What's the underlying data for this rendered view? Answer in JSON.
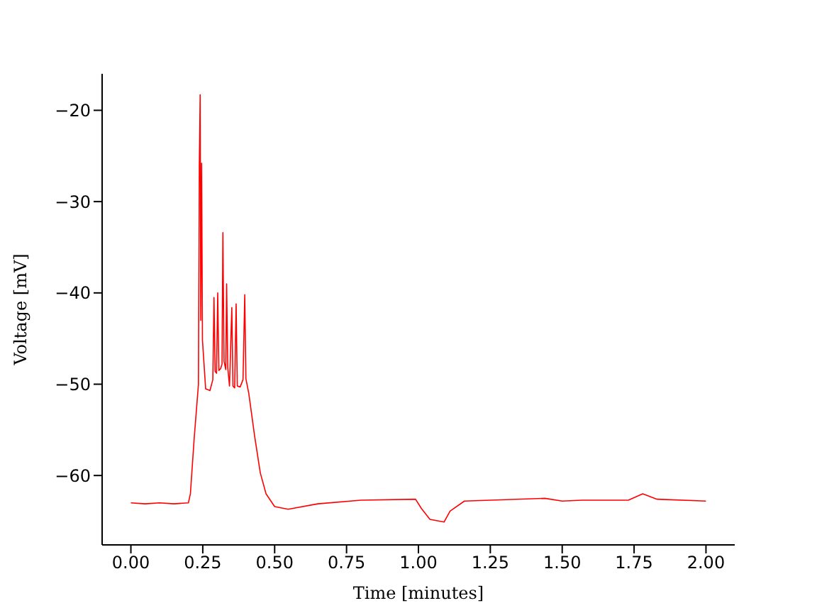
{
  "chart_data": {
    "type": "line",
    "xlabel": "Time [minutes]",
    "ylabel": "Voltage [mV]",
    "x": [
      0,
      0.05,
      0.1,
      0.15,
      0.2,
      0.207,
      0.22,
      0.235,
      0.238,
      0.241,
      0.243,
      0.246,
      0.249,
      0.26,
      0.275,
      0.285,
      0.289,
      0.293,
      0.298,
      0.302,
      0.306,
      0.312,
      0.317,
      0.32,
      0.324,
      0.33,
      0.333,
      0.337,
      0.343,
      0.351,
      0.355,
      0.361,
      0.366,
      0.37,
      0.38,
      0.39,
      0.396,
      0.4,
      0.41,
      0.43,
      0.45,
      0.47,
      0.5,
      0.547,
      0.65,
      0.8,
      0.99,
      1.01,
      1.04,
      1.089,
      1.11,
      1.16,
      1.25,
      1.44,
      1.5,
      1.57,
      1.73,
      1.78,
      1.83,
      2.0
    ],
    "values": [
      -63,
      -63.1,
      -63,
      -63.1,
      -63,
      -62,
      -56,
      -50,
      -26,
      -18.3,
      -43,
      -25.8,
      -45.2,
      -50.5,
      -50.7,
      -49.5,
      -40.5,
      -48.6,
      -48.8,
      -40,
      -48.5,
      -48.3,
      -47.8,
      -33.4,
      -47.5,
      -48.4,
      -39,
      -48.2,
      -50.2,
      -41.6,
      -50.2,
      -50.4,
      -41.2,
      -50.2,
      -50.3,
      -49.5,
      -40.2,
      -49.4,
      -51,
      -55.6,
      -59.7,
      -62,
      -63.4,
      -63.7,
      -63.1,
      -62.7,
      -62.6,
      -63.6,
      -64.8,
      -65.1,
      -63.9,
      -62.8,
      -62.7,
      -62.5,
      -62.8,
      -62.7,
      -62.7,
      -62,
      -62.6,
      -62.8
    ],
    "color": "#ff0000",
    "xlim": [
      -0.1,
      2.1
    ],
    "ylim": [
      -67.6,
      -16
    ],
    "xticks": [
      {
        "value": 0,
        "label": "0.00"
      },
      {
        "value": 0.25,
        "label": "0.25"
      },
      {
        "value": 0.5,
        "label": "0.50"
      },
      {
        "value": 0.75,
        "label": "0.75"
      },
      {
        "value": 1,
        "label": "1.00"
      },
      {
        "value": 1.25,
        "label": "1.25"
      },
      {
        "value": 1.5,
        "label": "1.50"
      },
      {
        "value": 1.75,
        "label": "1.75"
      },
      {
        "value": 2,
        "label": "2.00"
      }
    ],
    "yticks": [
      {
        "value": -60,
        "label": "−60"
      },
      {
        "value": -50,
        "label": "−50"
      },
      {
        "value": -40,
        "label": "−40"
      },
      {
        "value": -30,
        "label": "−30"
      },
      {
        "value": -20,
        "label": "−20"
      }
    ],
    "grid": false,
    "marker": "none",
    "line_style": "solid"
  }
}
